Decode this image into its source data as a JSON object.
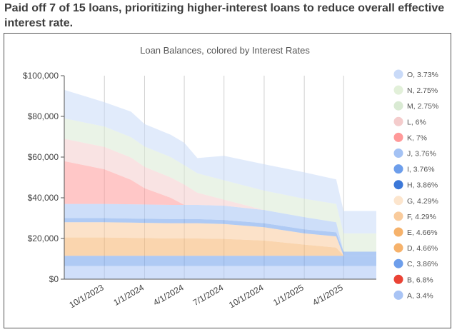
{
  "headline": "Paid off 7 of 15 loans, prioritizing higher-interest loans to reduce overall effective interest rate.",
  "chart_data": {
    "type": "area",
    "stacked": true,
    "title": "Loan Balances, colored by Interest Rates",
    "xlabel": "",
    "ylabel": "",
    "ylim": [
      0,
      100000
    ],
    "y_ticks": [
      "$0",
      "$20,000",
      "$40,000",
      "$60,000",
      "$80,000",
      "$100,000"
    ],
    "x_ticks": [
      "10/1/2023",
      "1/1/2024",
      "4/1/2024",
      "7/1/2024",
      "10/1/2024",
      "1/1/2025",
      "4/1/2025"
    ],
    "grid": "vertical",
    "legend": "right",
    "x": [
      "2023-07-01",
      "2023-10-01",
      "2023-12-01",
      "2024-01-01",
      "2024-03-01",
      "2024-04-01",
      "2024-05-01",
      "2024-07-01",
      "2024-10-01",
      "2025-01-01",
      "2025-03-15",
      "2025-04-01",
      "2025-06-15"
    ],
    "series": [
      {
        "name": "A, 3.4%",
        "color": "#a9c4f5",
        "values": [
          6500,
          6500,
          6500,
          6500,
          6500,
          6500,
          6500,
          6500,
          6500,
          6500,
          6500,
          6500,
          6500
        ]
      },
      {
        "name": "B, 6.8%",
        "color": "#ea4335",
        "values": [
          0,
          0,
          0,
          0,
          0,
          0,
          0,
          0,
          0,
          0,
          0,
          0,
          0
        ]
      },
      {
        "name": "C, 3.86%",
        "color": "#6d9eeb",
        "values": [
          5000,
          5000,
          5000,
          5000,
          5000,
          5000,
          5000,
          5000,
          5000,
          5000,
          5000,
          5000,
          5000
        ]
      },
      {
        "name": "D, 4.66%",
        "color": "#f6b26b",
        "values": [
          9000,
          9000,
          8800,
          8700,
          8500,
          8500,
          8500,
          8300,
          7500,
          5500,
          4000,
          0,
          0
        ]
      },
      {
        "name": "E, 4.66%",
        "color": "#f6b26b",
        "values": [
          0,
          0,
          0,
          0,
          0,
          0,
          0,
          0,
          0,
          0,
          0,
          0,
          0
        ]
      },
      {
        "name": "F, 4.29%",
        "color": "#f9cb9c",
        "values": [
          7500,
          7500,
          7500,
          7500,
          7500,
          7500,
          7500,
          7300,
          6500,
          5500,
          5500,
          0,
          0
        ]
      },
      {
        "name": "G, 4.29%",
        "color": "#fce5cd",
        "values": [
          0,
          0,
          0,
          0,
          0,
          0,
          0,
          0,
          0,
          0,
          0,
          0,
          0
        ]
      },
      {
        "name": "H, 3.86%",
        "color": "#3c78d8",
        "values": [
          0,
          0,
          0,
          0,
          0,
          0,
          0,
          0,
          0,
          0,
          0,
          0,
          0
        ]
      },
      {
        "name": "I, 3.76%",
        "color": "#6d9eeb",
        "values": [
          2000,
          2000,
          2000,
          2000,
          2000,
          2000,
          2000,
          2000,
          2000,
          2000,
          2000,
          2000,
          2000
        ]
      },
      {
        "name": "J, 3.76%",
        "color": "#a4c2f4",
        "values": [
          7000,
          7000,
          7000,
          7000,
          7000,
          7000,
          7000,
          7000,
          6500,
          6000,
          5000,
          0,
          0
        ]
      },
      {
        "name": "K, 7%",
        "color": "#ff9999",
        "values": [
          21000,
          17000,
          12000,
          8000,
          3500,
          0,
          0,
          0,
          0,
          0,
          0,
          0,
          0
        ]
      },
      {
        "name": "L, 6%",
        "color": "#f4cccc",
        "values": [
          11000,
          11000,
          11000,
          10500,
          10000,
          10000,
          6000,
          3000,
          0,
          0,
          0,
          0,
          0
        ]
      },
      {
        "name": "M, 2.75%",
        "color": "#d9ead3",
        "values": [
          10000,
          10000,
          10000,
          10000,
          10000,
          9500,
          9500,
          9500,
          9500,
          9000,
          9000,
          9000,
          9000
        ]
      },
      {
        "name": "N, 2.75%",
        "color": "#e2f0d9",
        "values": [
          0,
          0,
          0,
          0,
          0,
          0,
          0,
          0,
          0,
          0,
          0,
          0,
          0
        ]
      },
      {
        "name": "O, 3.73%",
        "color": "#c9daf8",
        "values": [
          14000,
          12000,
          12500,
          11000,
          11000,
          11000,
          7500,
          12000,
          13000,
          13000,
          12000,
          11000,
          11000
        ]
      }
    ]
  }
}
